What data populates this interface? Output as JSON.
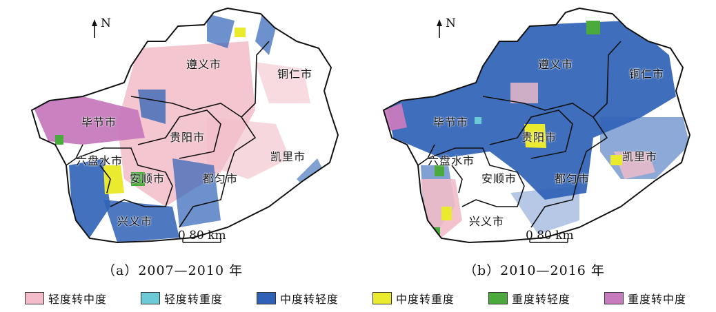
{
  "north_label": "N",
  "scale_label": "0 80 km",
  "colors": {
    "light_to_moderate": "#f2bdc8",
    "light_to_severe": "#6ccad6",
    "moderate_to_light": "#2f62b6",
    "moderate_to_severe": "#eaea2e",
    "severe_to_light": "#4aaa3c",
    "severe_to_moderate": "#c77abd"
  },
  "panel_a": {
    "caption": "（a）2007—2010 年",
    "cities": [
      "遵义市",
      "铜仁市",
      "毕节市",
      "贵阳市",
      "凯里市",
      "六盘水市",
      "安顺市",
      "都匀市",
      "兴义市"
    ]
  },
  "panel_b": {
    "caption": "（b）2010—2016 年",
    "cities": [
      "遵义市",
      "铜仁市",
      "毕节市",
      "贵阳市",
      "凯里市",
      "六盘水市",
      "安顺市",
      "都匀市",
      "兴义市"
    ]
  },
  "legend": [
    {
      "label": "轻度转中度",
      "color": "#f2bdc8"
    },
    {
      "label": "轻度转重度",
      "color": "#6ccad6"
    },
    {
      "label": "中度转轻度",
      "color": "#2f62b6"
    },
    {
      "label": "中度转重度",
      "color": "#eaea2e"
    },
    {
      "label": "重度转轻度",
      "color": "#4aaa3c"
    },
    {
      "label": "重度转中度",
      "color": "#c77abd"
    }
  ]
}
